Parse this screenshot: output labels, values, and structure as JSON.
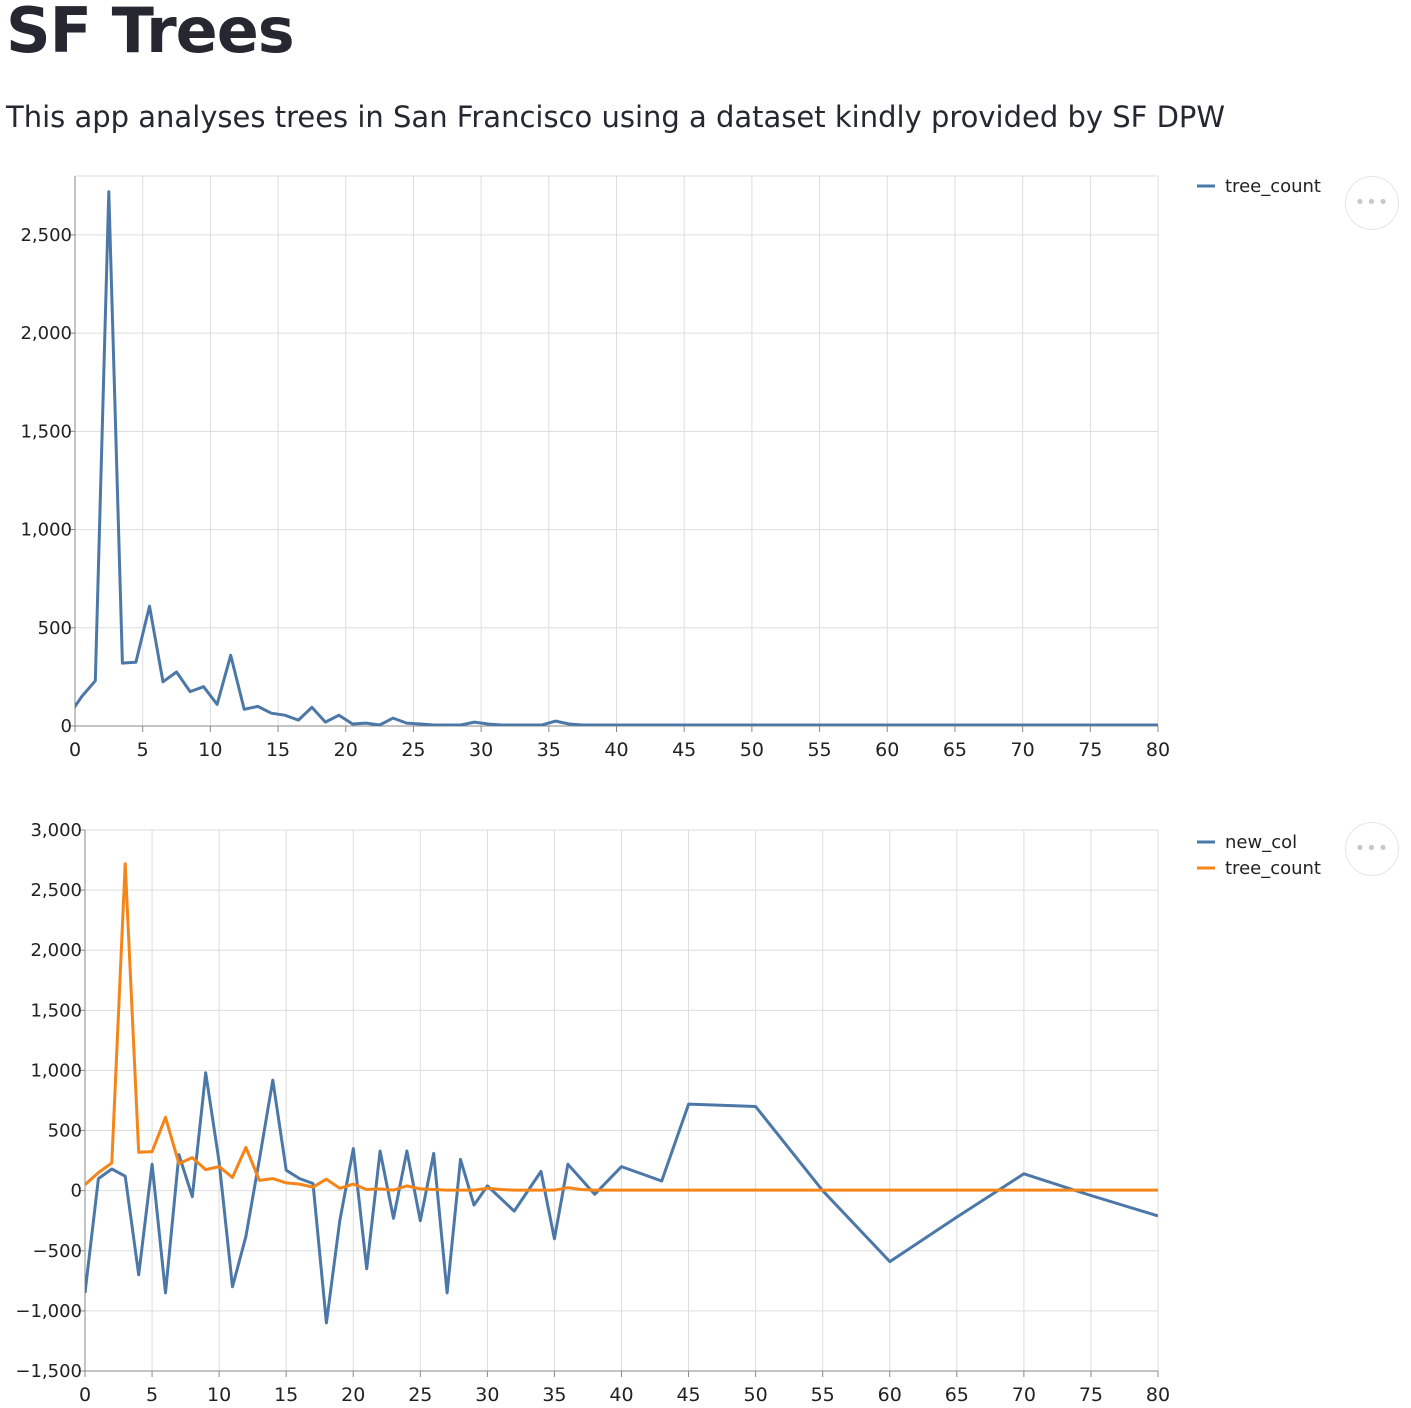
{
  "header": {
    "title": "SF Trees",
    "subtitle": "This app analyses trees in San Francisco using a dataset kindly provided by SF DPW"
  },
  "colors": {
    "series_blue": "#4c78a8",
    "series_orange": "#f58518",
    "grid": "#dddddd",
    "axis": "#888888"
  },
  "menu": {
    "icon": "more-horizontal-icon",
    "glyph": "•••"
  },
  "chart_data": [
    {
      "type": "line",
      "title": "",
      "xlabel": "",
      "ylabel": "",
      "xlim": [
        0,
        80
      ],
      "ylim": [
        0,
        2800
      ],
      "x_ticks": [
        0,
        5,
        10,
        15,
        20,
        25,
        30,
        35,
        40,
        45,
        50,
        55,
        60,
        65,
        70,
        75,
        80
      ],
      "y_ticks": [
        0,
        500,
        1000,
        1500,
        2000,
        2500
      ],
      "x_tick_labels": [
        "0",
        "5",
        "10",
        "15",
        "20",
        "25",
        "30",
        "35",
        "40",
        "45",
        "50",
        "55",
        "60",
        "65",
        "70",
        "75",
        "80"
      ],
      "y_tick_labels": [
        "0",
        "500",
        "1,000",
        "1,500",
        "2,000",
        "2,500"
      ],
      "grid": true,
      "legend": "top-right",
      "series": [
        {
          "name": "tree_count",
          "color": "#4c78a8",
          "x": [
            -0.5,
            0.5,
            1.5,
            2.5,
            3.5,
            4.5,
            5.5,
            6.5,
            7.5,
            8.5,
            9.5,
            10.5,
            11.5,
            12.5,
            13.5,
            14.5,
            15.5,
            16.5,
            17.5,
            18.5,
            19.5,
            20.5,
            21.5,
            22.5,
            23.5,
            24.5,
            25.5,
            26.5,
            27.5,
            28.5,
            29.5,
            30.5,
            31.5,
            32.5,
            33.5,
            34.5,
            35.5,
            36.5,
            37.5,
            38.5,
            40,
            45,
            50,
            55,
            60,
            65,
            70,
            75,
            80
          ],
          "values": [
            50,
            150,
            230,
            2720,
            320,
            325,
            610,
            225,
            275,
            175,
            200,
            110,
            360,
            85,
            100,
            65,
            55,
            30,
            95,
            20,
            55,
            10,
            15,
            5,
            40,
            15,
            10,
            5,
            5,
            5,
            20,
            10,
            5,
            5,
            5,
            5,
            25,
            10,
            5,
            5,
            5,
            5,
            5,
            5,
            5,
            5,
            5,
            5,
            5
          ]
        }
      ]
    },
    {
      "type": "line",
      "title": "",
      "xlabel": "",
      "ylabel": "",
      "xlim": [
        0,
        80
      ],
      "ylim": [
        -1500,
        3000
      ],
      "x_ticks": [
        0,
        5,
        10,
        15,
        20,
        25,
        30,
        35,
        40,
        45,
        50,
        55,
        60,
        65,
        70,
        75,
        80
      ],
      "y_ticks": [
        -1500,
        -1000,
        -500,
        0,
        500,
        1000,
        1500,
        2000,
        2500,
        3000
      ],
      "x_tick_labels": [
        "0",
        "5",
        "10",
        "15",
        "20",
        "25",
        "30",
        "35",
        "40",
        "45",
        "50",
        "55",
        "60",
        "65",
        "70",
        "75",
        "80"
      ],
      "y_tick_labels": [
        "−1,500",
        "−1,000",
        "−500",
        "0",
        "500",
        "1,000",
        "1,500",
        "2,000",
        "2,500",
        "3,000"
      ],
      "grid": true,
      "legend": "top-right",
      "series": [
        {
          "name": "new_col",
          "color": "#4c78a8",
          "x": [
            0,
            1,
            2,
            3,
            4,
            5,
            6,
            7,
            8,
            9,
            10,
            11,
            12,
            13,
            14,
            15,
            16,
            17,
            18,
            19,
            20,
            21,
            22,
            23,
            24,
            25,
            26,
            27,
            28,
            29,
            30,
            32,
            34,
            35,
            36,
            38,
            40,
            43,
            45,
            50,
            55,
            60,
            65,
            70,
            75,
            80
          ],
          "values": [
            -850,
            100,
            180,
            120,
            -700,
            220,
            -850,
            300,
            -50,
            980,
            240,
            -800,
            -380,
            260,
            920,
            170,
            100,
            60,
            -1100,
            -250,
            350,
            -650,
            330,
            -230,
            330,
            -250,
            310,
            -850,
            260,
            -120,
            40,
            -170,
            160,
            -400,
            220,
            -30,
            200,
            80,
            720,
            700,
            0,
            -590,
            -220,
            140,
            -40,
            -210
          ]
        },
        {
          "name": "tree_count",
          "color": "#f58518",
          "x": [
            0,
            1,
            2,
            3,
            4,
            5,
            6,
            7,
            8,
            9,
            10,
            11,
            12,
            13,
            14,
            15,
            16,
            17,
            18,
            19,
            20,
            21,
            22,
            23,
            24,
            25,
            26,
            27,
            28,
            29,
            30,
            31,
            32,
            33,
            34,
            35,
            36,
            37,
            38,
            40,
            45,
            50,
            55,
            60,
            65,
            70,
            75,
            80
          ],
          "values": [
            50,
            150,
            230,
            2720,
            320,
            325,
            610,
            225,
            275,
            175,
            200,
            110,
            360,
            85,
            100,
            65,
            55,
            30,
            95,
            20,
            55,
            10,
            15,
            5,
            40,
            15,
            10,
            5,
            5,
            5,
            20,
            10,
            5,
            5,
            5,
            5,
            25,
            10,
            5,
            5,
            5,
            5,
            5,
            5,
            5,
            5,
            5,
            5
          ]
        }
      ]
    }
  ]
}
